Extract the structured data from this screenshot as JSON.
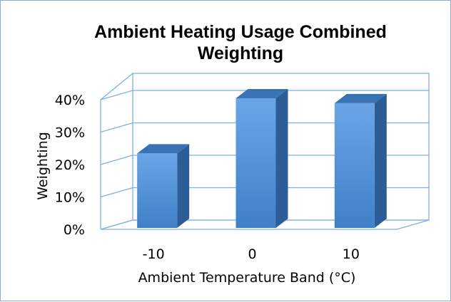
{
  "chart_data": {
    "type": "bar",
    "title_lines": [
      "Ambient Heating Usage Combined",
      "Weighting"
    ],
    "xlabel": "Ambient Temperature Band (°C)",
    "ylabel": "Weighting",
    "categories": [
      "-10",
      "0",
      "10"
    ],
    "values": [
      23,
      40,
      38.5
    ],
    "ylim": [
      0,
      40
    ],
    "yticks": [
      0,
      10,
      20,
      30,
      40
    ],
    "ytick_labels": [
      "0%",
      "10%",
      "20%",
      "30%",
      "40%"
    ],
    "grid": true,
    "legend": "none",
    "three_d": true,
    "colors": {
      "bar_front": "#4f8fd6",
      "bar_front_light": "#6aa6e6",
      "bar_top": "#3a73b3",
      "bar_side": "#2d5d96",
      "grid": "#7fb0dd"
    }
  }
}
